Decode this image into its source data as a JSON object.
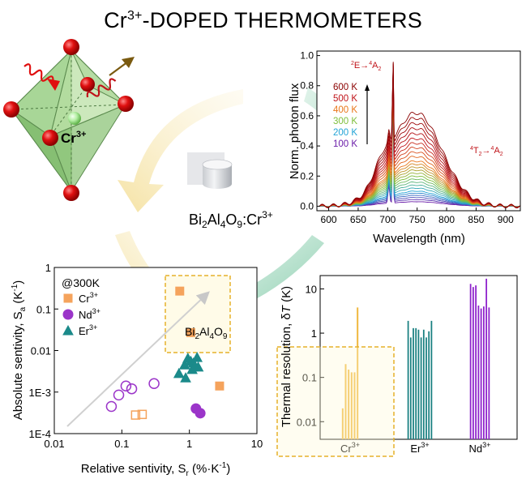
{
  "title": {
    "main": "-DOPED THERMOMETERS",
    "ion": "Cr",
    "charge": "3+"
  },
  "crystal": {
    "ion": "Cr",
    "charge": "3+"
  },
  "sample": {
    "p1": "Bi",
    "s1": "2",
    "p2": "Al",
    "s2": "4",
    "p3": "O",
    "s3": "9",
    "p4": ":Cr",
    "charge": "3+"
  },
  "colors": {
    "cr": "#f5a35c",
    "nd": "#9b35c9",
    "er": "#1b8a8a",
    "box": "#e5b12a",
    "octahedron": "#8fc77c",
    "arrow_green": "#7cc2a0",
    "arrow_yellow": "#f3dc8f"
  },
  "chart_data": [
    {
      "type": "line",
      "title": "",
      "xlabel": "Wavelength (nm)",
      "ylabel": "Norm. photon flux",
      "xlim": [
        580,
        925
      ],
      "ylim": [
        -0.03,
        1.03
      ],
      "xticks": [
        600,
        650,
        700,
        750,
        800,
        850,
        900
      ],
      "yticks": [
        0.0,
        0.2,
        0.4,
        0.6,
        0.8,
        1.0
      ],
      "xtick_labels": [
        "600",
        "650",
        "700",
        "750",
        "800",
        "850",
        "900"
      ],
      "ytick_labels": [
        "0.0",
        "0.2",
        "0.4",
        "0.6",
        "0.8",
        "1.0"
      ],
      "annotations": {
        "e_line": {
          "a": "2",
          "b": "E",
          "c": "→",
          "d": "4",
          "e": "A",
          "f": "2"
        },
        "t_line": {
          "a": "4",
          "b": "T",
          "c": "2",
          "d": "→",
          "e": "4",
          "f": "A",
          "g": "2"
        }
      },
      "legend": [
        "600 K",
        "500 K",
        "400 K",
        "300 K",
        "200 K",
        "100 K"
      ],
      "legend_colors": [
        "#8b0000",
        "#c0141a",
        "#e9771b",
        "#7fbf3c",
        "#22a3d6",
        "#6a1ca8"
      ],
      "series": [
        {
          "name": "100 K",
          "temp": 100,
          "broad_amplitude": 0.03
        },
        {
          "name": "200 K",
          "temp": 200,
          "broad_amplitude": 0.1
        },
        {
          "name": "300 K",
          "temp": 300,
          "broad_amplitude": 0.2
        },
        {
          "name": "400 K",
          "temp": 400,
          "broad_amplitude": 0.3
        },
        {
          "name": "500 K",
          "temp": 500,
          "broad_amplitude": 0.45
        },
        {
          "name": "600 K",
          "temp": 600,
          "broad_amplitude": 0.62
        }
      ]
    },
    {
      "type": "scatter",
      "title": "",
      "xlabel": "Relative sentivity, S",
      "xlabel_sub": "r",
      "xlabel_unit": " (%·K",
      "xlabel_exp": "-1",
      "xlabel_close": ")",
      "ylabel": "Absolute sentivity, S",
      "ylabel_sub": "a",
      "ylabel_unit": " (K",
      "ylabel_exp": "-1",
      "ylabel_close": ")",
      "xscale": "log",
      "yscale": "log",
      "xlim": [
        0.01,
        10
      ],
      "ylim": [
        0.0001,
        1
      ],
      "xtick_labels": [
        "0.01",
        "0.1",
        "1",
        "10"
      ],
      "ytick_labels": [
        "1E-4",
        "1E-3",
        "0.01",
        "0.1",
        "1"
      ],
      "condition": "@300K",
      "highlight": {
        "p1": "Bi",
        "s1": "2",
        "p2": "Al",
        "s2": "4",
        "p3": "O",
        "s3": "9"
      },
      "legend": [
        {
          "name": "Cr",
          "charge": "3+",
          "marker": "square",
          "color": "#f5a35c"
        },
        {
          "name": "Nd",
          "charge": "3+",
          "marker": "circle",
          "color": "#9b35c9"
        },
        {
          "name": "Er",
          "charge": "3+",
          "marker": "triangle",
          "color": "#1b8a8a"
        }
      ],
      "series": [
        {
          "name": "Cr3+",
          "marker": "square",
          "fill": true,
          "points": [
            [
              0.72,
              0.27
            ],
            [
              1.05,
              0.027
            ],
            [
              2.8,
              0.0014
            ]
          ]
        },
        {
          "name": "Cr3+",
          "marker": "square",
          "fill": false,
          "points": [
            [
              0.16,
              0.00028
            ],
            [
              0.2,
              0.00029
            ]
          ]
        },
        {
          "name": "Nd3+",
          "marker": "circle",
          "fill": true,
          "points": [
            [
              1.25,
              0.0004
            ],
            [
              1.45,
              0.00031
            ]
          ]
        },
        {
          "name": "Nd3+",
          "marker": "circle",
          "fill": false,
          "points": [
            [
              0.07,
              0.00045
            ],
            [
              0.09,
              0.00085
            ],
            [
              0.115,
              0.0014
            ],
            [
              0.14,
              0.0012
            ],
            [
              0.3,
              0.0016
            ]
          ]
        },
        {
          "name": "Er3+",
          "marker": "triangle",
          "fill": true,
          "points": [
            [
              0.7,
              0.0028
            ],
            [
              0.85,
              0.0045
            ],
            [
              0.95,
              0.0065
            ],
            [
              1.05,
              0.0055
            ],
            [
              1.15,
              0.005
            ],
            [
              1.3,
              0.0068
            ],
            [
              1.1,
              0.0035
            ],
            [
              1.35,
              0.004
            ],
            [
              0.88,
              0.0022
            ],
            [
              1.2,
              0.0042
            ]
          ]
        }
      ]
    },
    {
      "type": "bar",
      "title": "",
      "ylabel": "Thermal resolution, δ",
      "ylabel_italic": "T",
      "ylabel_unit": " (K)",
      "yscale": "log",
      "ylim": [
        0.01,
        20
      ],
      "ytick_labels": [
        "0.01",
        "0.1",
        "1",
        "10"
      ],
      "categories": [
        {
          "name": "Cr",
          "charge": "3+",
          "color": "#f0b840",
          "values": [
            0.02,
            0.2,
            0.15,
            0.13,
            0.13,
            3.8
          ]
        },
        {
          "name": "Er",
          "charge": "3+",
          "color": "#187f80",
          "values": [
            1.9,
            0.8,
            1.3,
            1.3,
            1.2,
            0.8,
            1.2,
            0.8,
            1.1,
            1.9
          ]
        },
        {
          "name": "Nd",
          "charge": "3+",
          "color": "#8e22cc",
          "values": [
            13,
            11,
            12,
            4.2,
            3.6,
            4.0,
            17,
            3.8
          ]
        }
      ]
    }
  ]
}
